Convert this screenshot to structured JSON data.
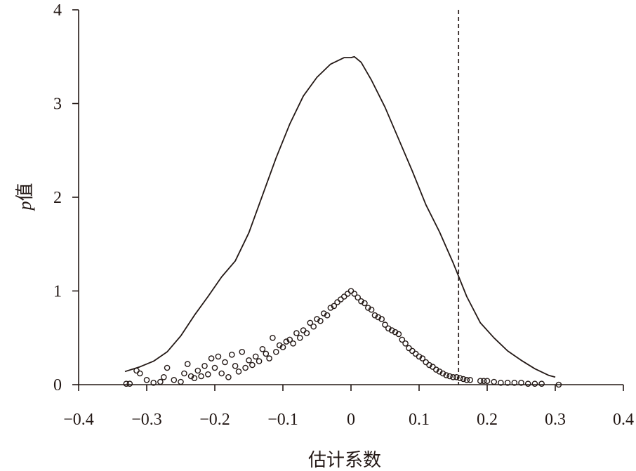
{
  "chart_data": {
    "type": "scatter",
    "title": "",
    "xlabel": "估计系数",
    "ylabel": {
      "prefix": "p",
      "suffix": "值"
    },
    "xlim": [
      -0.4,
      0.4
    ],
    "ylim": [
      0,
      4
    ],
    "grid": false,
    "legend": "none",
    "x_ticks": [
      "−0.4",
      "−0.3",
      "−0.2",
      "−0.1",
      "0",
      "0.1",
      "0.2",
      "0.3",
      "0.4"
    ],
    "x_tick_values": [
      -0.4,
      -0.3,
      -0.2,
      -0.1,
      0,
      0.1,
      0.2,
      0.3,
      0.4
    ],
    "y_ticks": [
      "0",
      "1",
      "2",
      "3",
      "4"
    ],
    "y_tick_values": [
      0,
      1,
      2,
      3,
      4
    ],
    "reference_line": {
      "x": 0.158,
      "style": "dashed"
    },
    "series": [
      {
        "kind": "line",
        "x": [
          -0.332,
          -0.31,
          -0.29,
          -0.27,
          -0.25,
          -0.23,
          -0.21,
          -0.19,
          -0.17,
          -0.15,
          -0.13,
          -0.11,
          -0.09,
          -0.07,
          -0.05,
          -0.03,
          -0.01,
          0.0,
          0.005,
          0.015,
          0.03,
          0.05,
          0.07,
          0.09,
          0.11,
          0.13,
          0.15,
          0.17,
          0.19,
          0.21,
          0.23,
          0.25,
          0.27,
          0.29,
          0.3
        ],
        "y": [
          0.14,
          0.19,
          0.25,
          0.35,
          0.52,
          0.74,
          0.94,
          1.15,
          1.32,
          1.62,
          2.02,
          2.42,
          2.78,
          3.08,
          3.28,
          3.42,
          3.49,
          3.49,
          3.5,
          3.44,
          3.25,
          2.96,
          2.62,
          2.28,
          1.92,
          1.63,
          1.3,
          0.94,
          0.66,
          0.5,
          0.36,
          0.26,
          0.17,
          0.1,
          0.08
        ]
      },
      {
        "kind": "scatter",
        "x": [
          -0.33,
          -0.325,
          -0.315,
          -0.31,
          -0.3,
          -0.29,
          -0.28,
          -0.275,
          -0.27,
          -0.26,
          -0.25,
          -0.245,
          -0.24,
          -0.235,
          -0.23,
          -0.225,
          -0.22,
          -0.215,
          -0.21,
          -0.205,
          -0.2,
          -0.195,
          -0.19,
          -0.185,
          -0.18,
          -0.175,
          -0.17,
          -0.165,
          -0.16,
          -0.155,
          -0.15,
          -0.145,
          -0.14,
          -0.135,
          -0.13,
          -0.125,
          -0.12,
          -0.115,
          -0.11,
          -0.105,
          -0.1,
          -0.095,
          -0.09,
          -0.085,
          -0.08,
          -0.075,
          -0.07,
          -0.065,
          -0.06,
          -0.055,
          -0.05,
          -0.045,
          -0.04,
          -0.035,
          -0.03,
          -0.025,
          -0.02,
          -0.015,
          -0.01,
          -0.005,
          0.0,
          0.005,
          0.01,
          0.015,
          0.02,
          0.025,
          0.03,
          0.035,
          0.04,
          0.045,
          0.05,
          0.055,
          0.06,
          0.065,
          0.07,
          0.075,
          0.08,
          0.085,
          0.09,
          0.095,
          0.1,
          0.105,
          0.11,
          0.115,
          0.12,
          0.125,
          0.13,
          0.135,
          0.14,
          0.145,
          0.15,
          0.155,
          0.16,
          0.165,
          0.17,
          0.175,
          0.19,
          0.195,
          0.2,
          0.21,
          0.22,
          0.23,
          0.24,
          0.25,
          0.26,
          0.27,
          0.28,
          0.305
        ],
        "y": [
          0.01,
          0.01,
          0.15,
          0.12,
          0.05,
          0.02,
          0.03,
          0.08,
          0.18,
          0.05,
          0.03,
          0.12,
          0.22,
          0.09,
          0.07,
          0.15,
          0.09,
          0.2,
          0.11,
          0.28,
          0.18,
          0.3,
          0.12,
          0.24,
          0.08,
          0.32,
          0.2,
          0.14,
          0.35,
          0.18,
          0.26,
          0.21,
          0.3,
          0.25,
          0.38,
          0.33,
          0.28,
          0.5,
          0.35,
          0.42,
          0.4,
          0.46,
          0.48,
          0.44,
          0.55,
          0.5,
          0.58,
          0.55,
          0.66,
          0.62,
          0.7,
          0.68,
          0.76,
          0.74,
          0.82,
          0.84,
          0.88,
          0.91,
          0.94,
          0.97,
          1.0,
          0.97,
          0.93,
          0.89,
          0.87,
          0.82,
          0.8,
          0.74,
          0.72,
          0.7,
          0.64,
          0.6,
          0.58,
          0.56,
          0.54,
          0.48,
          0.44,
          0.39,
          0.36,
          0.33,
          0.3,
          0.28,
          0.24,
          0.21,
          0.19,
          0.16,
          0.14,
          0.12,
          0.1,
          0.09,
          0.08,
          0.08,
          0.07,
          0.06,
          0.05,
          0.05,
          0.04,
          0.04,
          0.04,
          0.03,
          0.02,
          0.02,
          0.02,
          0.02,
          0.01,
          0.01,
          0.01,
          0.0
        ]
      }
    ]
  }
}
